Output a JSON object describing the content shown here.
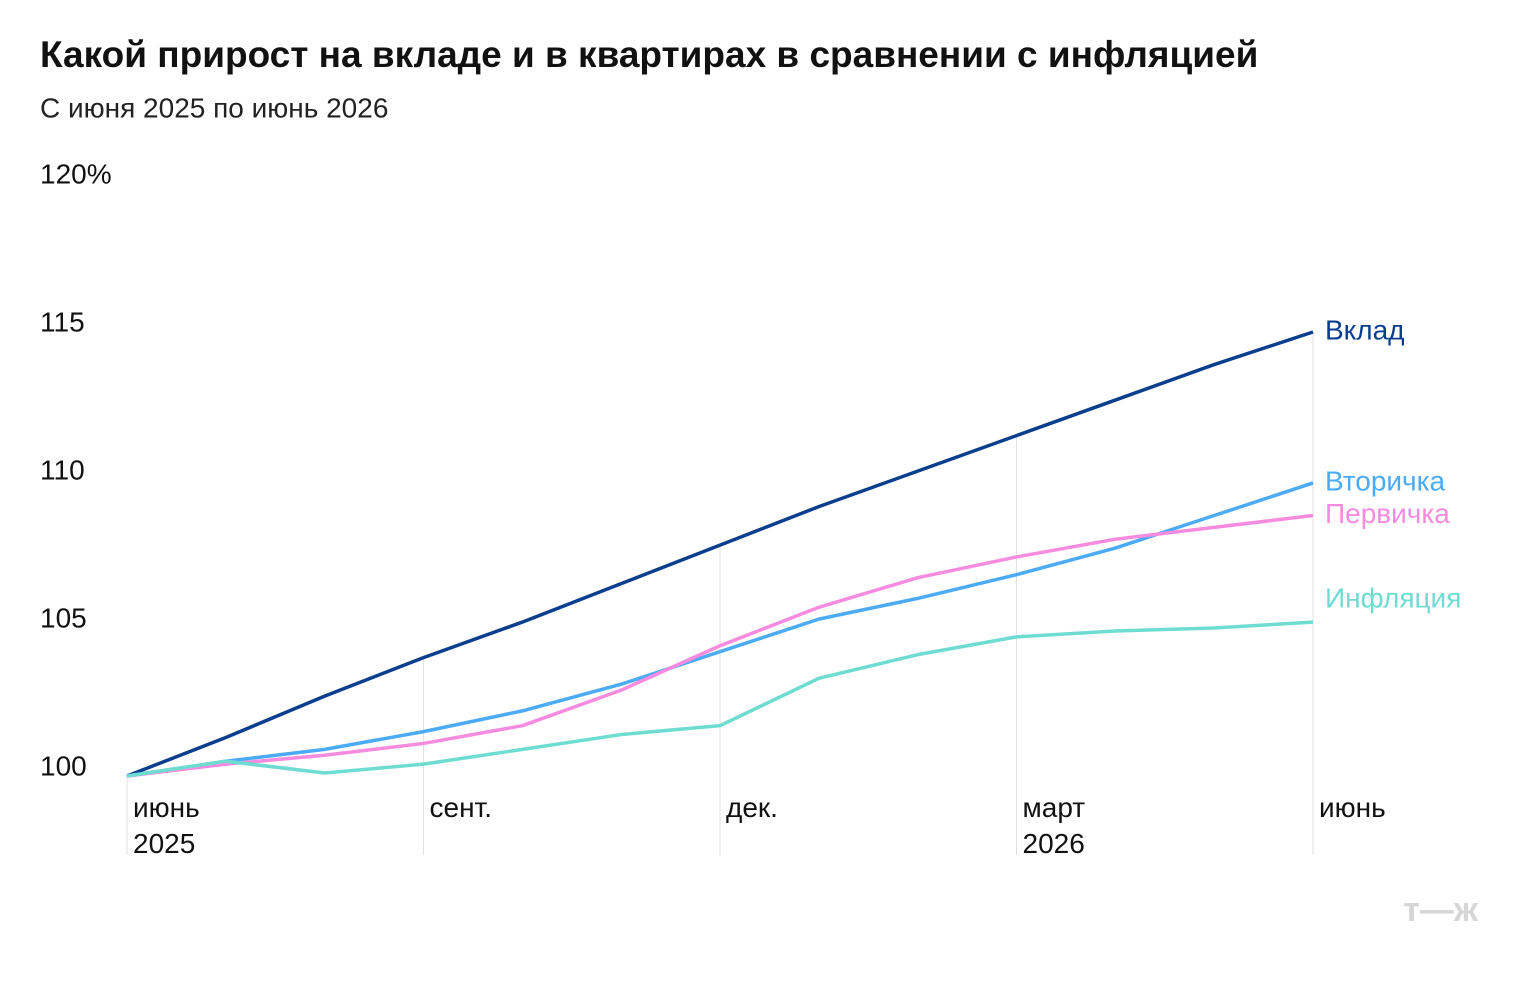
{
  "chart_data": {
    "type": "line",
    "title": "Какой прирост на вкладе и в квартирах в сравнении с инфляцией",
    "subtitle": "С июня 2025 по июнь 2026",
    "categories": [
      "июнь 2025",
      null,
      null,
      "сент.",
      null,
      null,
      "дек.",
      null,
      null,
      "март 2026",
      null,
      null,
      "июнь"
    ],
    "series": [
      {
        "name": "Вклад",
        "color": "#0b3f8e",
        "values": [
          100,
          101.3,
          102.7,
          104.0,
          105.2,
          106.5,
          107.8,
          109.1,
          110.3,
          111.5,
          112.7,
          113.9,
          115.0
        ]
      },
      {
        "name": "Вторичка",
        "color": "#4cabf6",
        "values": [
          100,
          100.5,
          100.9,
          101.5,
          102.2,
          103.1,
          104.2,
          105.3,
          106.0,
          106.8,
          107.7,
          108.8,
          109.9
        ]
      },
      {
        "name": "Первичка",
        "color": "#f78be0",
        "values": [
          100,
          100.4,
          100.7,
          101.1,
          101.7,
          102.9,
          104.4,
          105.7,
          106.7,
          107.4,
          108.0,
          108.4,
          108.8
        ]
      },
      {
        "name": "Инфляция",
        "color": "#6edcd1",
        "values": [
          100,
          100.5,
          100.1,
          100.4,
          100.9,
          101.4,
          101.7,
          103.3,
          104.1,
          104.7,
          104.9,
          105.0,
          105.2
        ]
      }
    ],
    "ylim": [
      100,
      120
    ],
    "yticks": [
      100,
      105,
      110,
      115,
      {
        "value": 120,
        "label": "120%"
      }
    ],
    "logo": "т—ж"
  }
}
